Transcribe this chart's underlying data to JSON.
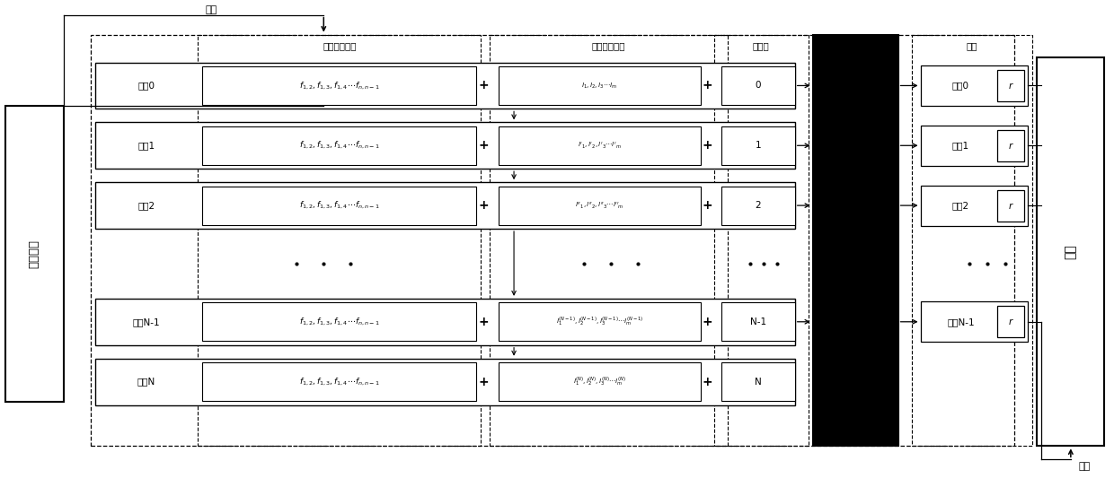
{
  "fig_width": 12.4,
  "fig_height": 5.43,
  "rows": [
    {
      "label": "状意0",
      "flow": "$f_{1,2},f_{1,3},f_{1,4}\\cdots f_{n,n-1}$",
      "link": "$l_1,l_2,l_3\\cdots l_m$",
      "prio": "0",
      "action": "动作0",
      "show_action": true
    },
    {
      "label": "状意1",
      "flow": "$f_{1,2},f_{1,3},f_{1,4}\\cdots f_{n,n-1}$",
      "link": "$l'_1,l'_2,l'_3\\cdots l'_m$",
      "prio": "1",
      "action": "动作1",
      "show_action": true
    },
    {
      "label": "状意2",
      "flow": "$f_{1,2},f_{1,3},f_{1,4}\\cdots f_{n,n-1}$",
      "link": "$l''_1,l''_2,l''_3\\cdots l''_m$",
      "prio": "2",
      "action": "动作2",
      "show_action": true
    },
    {
      "label": "状意N-1",
      "flow": "$f_{1,2},f_{1,3},f_{1,4}\\cdots f_{n,n-1}$",
      "link": "$l_1^{(N-1)},l_2^{(N-1)},l_3^{(N-1)}\\cdots l_m^{(N-1)}$",
      "prio": "N-1",
      "action": "动作N-1",
      "show_action": true
    },
    {
      "label": "状意N",
      "flow": "$f_{1,2},f_{1,3},f_{1,4}\\cdots f_{n,n-1}$",
      "link": "$l_1^{(N)},l_2^{(N)},l_3^{(N)}\\cdots l_m^{(N)}$",
      "prio": "N",
      "action": "",
      "show_action": false
    }
  ],
  "header_flow": "流量流量信息",
  "header_link": "钉路负载向量",
  "header_prio": "优先级",
  "header_route": "路由",
  "label_state": "状态信息",
  "label_ft": "流表",
  "label_input": "输入",
  "label_output": "输出"
}
